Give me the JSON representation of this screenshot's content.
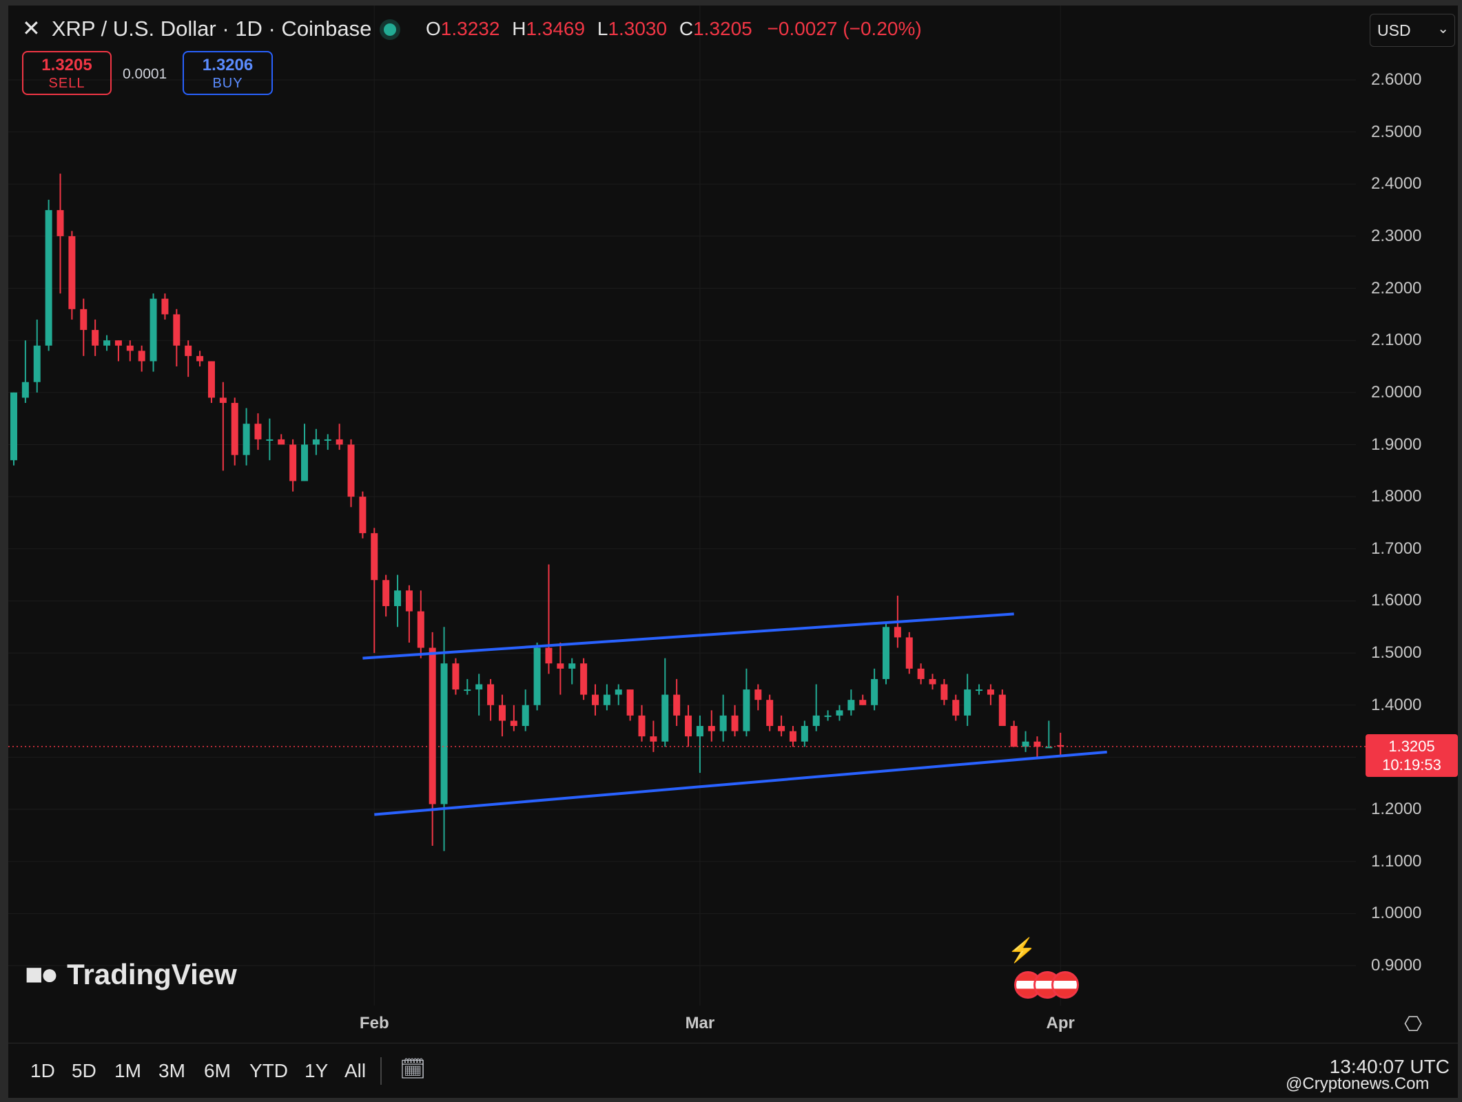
{
  "header": {
    "symbol_title": "XRP / U.S. Dollar · 1D · Coinbase",
    "ohlc": {
      "o_label": "O",
      "o_value": "1.3232",
      "h_label": "H",
      "h_value": "1.3469",
      "l_label": "L",
      "l_value": "1.3030",
      "c_label": "C",
      "c_value": "1.3205",
      "change": "−0.0027 (−0.20%)"
    },
    "sell_price": "1.3205",
    "sell_label": "SELL",
    "spread": "0.0001",
    "buy_price": "1.3206",
    "buy_label": "BUY",
    "currency": "USD"
  },
  "price_tag": {
    "price": "1.3205",
    "countdown": "10:19:53"
  },
  "logo_text": "TradingView",
  "timeframes": [
    "1D",
    "5D",
    "1M",
    "3M",
    "6M",
    "YTD",
    "1Y",
    "All"
  ],
  "clock": "13:40:07 UTC",
  "watermark": "@Cryptonews.Com",
  "colors": {
    "up": "#22ab94",
    "down": "#f23645",
    "trendline": "#2962ff",
    "background": "#0f0f0f",
    "grid": "#1c1c1c"
  },
  "icons": {
    "close": "close-icon",
    "calendar": "calendar-range-icon",
    "settings": "settings-icon",
    "event": "economic-event-icon",
    "flag": "us-flag-icon"
  },
  "chart_data": {
    "type": "candlestick",
    "symbol": "XRP / U.S. Dollar",
    "interval": "1D",
    "exchange": "Coinbase",
    "ylim": [
      0.85,
      2.68
    ],
    "y_ticks": [
      "2.6000",
      "2.5000",
      "2.4000",
      "2.3000",
      "2.2000",
      "2.1000",
      "2.0000",
      "1.9000",
      "1.8000",
      "1.7000",
      "1.6000",
      "1.5000",
      "1.4000",
      "1.3000",
      "1.2000",
      "1.1000",
      "1.0000",
      "0.9000"
    ],
    "x_ticks": [
      {
        "label": "Feb",
        "date": "2025-02-01"
      },
      {
        "label": "Mar",
        "date": "2025-03-01"
      },
      {
        "label": "Apr",
        "date": "2025-04-01"
      }
    ],
    "last_price": 1.3205,
    "candles": [
      {
        "date": "2025-01-01",
        "o": 1.87,
        "h": 2.0,
        "l": 1.86,
        "c": 2.0
      },
      {
        "date": "2025-01-02",
        "o": 1.99,
        "h": 2.1,
        "l": 1.98,
        "c": 2.02
      },
      {
        "date": "2025-01-03",
        "o": 2.02,
        "h": 2.14,
        "l": 2.0,
        "c": 2.09
      },
      {
        "date": "2025-01-04",
        "o": 2.09,
        "h": 2.37,
        "l": 2.08,
        "c": 2.35
      },
      {
        "date": "2025-01-05",
        "o": 2.35,
        "h": 2.42,
        "l": 2.19,
        "c": 2.3
      },
      {
        "date": "2025-01-06",
        "o": 2.3,
        "h": 2.31,
        "l": 2.14,
        "c": 2.16
      },
      {
        "date": "2025-01-07",
        "o": 2.16,
        "h": 2.18,
        "l": 2.07,
        "c": 2.12
      },
      {
        "date": "2025-01-08",
        "o": 2.12,
        "h": 2.14,
        "l": 2.07,
        "c": 2.09
      },
      {
        "date": "2025-01-09",
        "o": 2.09,
        "h": 2.11,
        "l": 2.08,
        "c": 2.1
      },
      {
        "date": "2025-01-10",
        "o": 2.1,
        "h": 2.1,
        "l": 2.06,
        "c": 2.09
      },
      {
        "date": "2025-01-11",
        "o": 2.09,
        "h": 2.1,
        "l": 2.06,
        "c": 2.08
      },
      {
        "date": "2025-01-12",
        "o": 2.08,
        "h": 2.09,
        "l": 2.04,
        "c": 2.06
      },
      {
        "date": "2025-01-13",
        "o": 2.06,
        "h": 2.19,
        "l": 2.04,
        "c": 2.18
      },
      {
        "date": "2025-01-14",
        "o": 2.18,
        "h": 2.19,
        "l": 2.14,
        "c": 2.15
      },
      {
        "date": "2025-01-15",
        "o": 2.15,
        "h": 2.16,
        "l": 2.05,
        "c": 2.09
      },
      {
        "date": "2025-01-16",
        "o": 2.09,
        "h": 2.1,
        "l": 2.03,
        "c": 2.07
      },
      {
        "date": "2025-01-17",
        "o": 2.07,
        "h": 2.08,
        "l": 2.05,
        "c": 2.06
      },
      {
        "date": "2025-01-18",
        "o": 2.06,
        "h": 2.06,
        "l": 1.98,
        "c": 1.99
      },
      {
        "date": "2025-01-19",
        "o": 1.99,
        "h": 2.02,
        "l": 1.85,
        "c": 1.98
      },
      {
        "date": "2025-01-20",
        "o": 1.98,
        "h": 1.99,
        "l": 1.86,
        "c": 1.88
      },
      {
        "date": "2025-01-21",
        "o": 1.88,
        "h": 1.97,
        "l": 1.86,
        "c": 1.94
      },
      {
        "date": "2025-01-22",
        "o": 1.94,
        "h": 1.96,
        "l": 1.89,
        "c": 1.91
      },
      {
        "date": "2025-01-23",
        "o": 1.91,
        "h": 1.95,
        "l": 1.87,
        "c": 1.91
      },
      {
        "date": "2025-01-24",
        "o": 1.91,
        "h": 1.92,
        "l": 1.9,
        "c": 1.9
      },
      {
        "date": "2025-01-25",
        "o": 1.9,
        "h": 1.91,
        "l": 1.81,
        "c": 1.83
      },
      {
        "date": "2025-01-26",
        "o": 1.83,
        "h": 1.94,
        "l": 1.83,
        "c": 1.9
      },
      {
        "date": "2025-01-27",
        "o": 1.9,
        "h": 1.93,
        "l": 1.88,
        "c": 1.91
      },
      {
        "date": "2025-01-28",
        "o": 1.91,
        "h": 1.92,
        "l": 1.89,
        "c": 1.91
      },
      {
        "date": "2025-01-29",
        "o": 1.91,
        "h": 1.94,
        "l": 1.89,
        "c": 1.9
      },
      {
        "date": "2025-01-30",
        "o": 1.9,
        "h": 1.91,
        "l": 1.78,
        "c": 1.8
      },
      {
        "date": "2025-01-31",
        "o": 1.8,
        "h": 1.81,
        "l": 1.72,
        "c": 1.73
      },
      {
        "date": "2025-02-01",
        "o": 1.73,
        "h": 1.74,
        "l": 1.5,
        "c": 1.64
      },
      {
        "date": "2025-02-02",
        "o": 1.64,
        "h": 1.65,
        "l": 1.57,
        "c": 1.59
      },
      {
        "date": "2025-02-03",
        "o": 1.59,
        "h": 1.65,
        "l": 1.55,
        "c": 1.62
      },
      {
        "date": "2025-02-04",
        "o": 1.62,
        "h": 1.63,
        "l": 1.52,
        "c": 1.58
      },
      {
        "date": "2025-02-05",
        "o": 1.58,
        "h": 1.62,
        "l": 1.49,
        "c": 1.51
      },
      {
        "date": "2025-02-06",
        "o": 1.51,
        "h": 1.54,
        "l": 1.13,
        "c": 1.21
      },
      {
        "date": "2025-02-07",
        "o": 1.21,
        "h": 1.55,
        "l": 1.12,
        "c": 1.48
      },
      {
        "date": "2025-02-08",
        "o": 1.48,
        "h": 1.49,
        "l": 1.42,
        "c": 1.43
      },
      {
        "date": "2025-02-09",
        "o": 1.43,
        "h": 1.45,
        "l": 1.42,
        "c": 1.43
      },
      {
        "date": "2025-02-10",
        "o": 1.43,
        "h": 1.46,
        "l": 1.38,
        "c": 1.44
      },
      {
        "date": "2025-02-11",
        "o": 1.44,
        "h": 1.45,
        "l": 1.37,
        "c": 1.4
      },
      {
        "date": "2025-02-12",
        "o": 1.4,
        "h": 1.42,
        "l": 1.34,
        "c": 1.37
      },
      {
        "date": "2025-02-13",
        "o": 1.37,
        "h": 1.4,
        "l": 1.35,
        "c": 1.36
      },
      {
        "date": "2025-02-14",
        "o": 1.36,
        "h": 1.43,
        "l": 1.35,
        "c": 1.4
      },
      {
        "date": "2025-02-15",
        "o": 1.4,
        "h": 1.52,
        "l": 1.39,
        "c": 1.51
      },
      {
        "date": "2025-02-16",
        "o": 1.51,
        "h": 1.67,
        "l": 1.46,
        "c": 1.48
      },
      {
        "date": "2025-02-17",
        "o": 1.48,
        "h": 1.52,
        "l": 1.42,
        "c": 1.47
      },
      {
        "date": "2025-02-18",
        "o": 1.47,
        "h": 1.49,
        "l": 1.44,
        "c": 1.48
      },
      {
        "date": "2025-02-19",
        "o": 1.48,
        "h": 1.49,
        "l": 1.41,
        "c": 1.42
      },
      {
        "date": "2025-02-20",
        "o": 1.42,
        "h": 1.44,
        "l": 1.38,
        "c": 1.4
      },
      {
        "date": "2025-02-21",
        "o": 1.4,
        "h": 1.44,
        "l": 1.39,
        "c": 1.42
      },
      {
        "date": "2025-02-22",
        "o": 1.42,
        "h": 1.44,
        "l": 1.4,
        "c": 1.43
      },
      {
        "date": "2025-02-23",
        "o": 1.43,
        "h": 1.43,
        "l": 1.37,
        "c": 1.38
      },
      {
        "date": "2025-02-24",
        "o": 1.38,
        "h": 1.4,
        "l": 1.33,
        "c": 1.34
      },
      {
        "date": "2025-02-25",
        "o": 1.34,
        "h": 1.37,
        "l": 1.31,
        "c": 1.33
      },
      {
        "date": "2025-02-26",
        "o": 1.33,
        "h": 1.49,
        "l": 1.32,
        "c": 1.42
      },
      {
        "date": "2025-02-27",
        "o": 1.42,
        "h": 1.45,
        "l": 1.36,
        "c": 1.38
      },
      {
        "date": "2025-02-28",
        "o": 1.38,
        "h": 1.4,
        "l": 1.32,
        "c": 1.34
      },
      {
        "date": "2025-03-01",
        "o": 1.34,
        "h": 1.38,
        "l": 1.27,
        "c": 1.36
      },
      {
        "date": "2025-03-02",
        "o": 1.36,
        "h": 1.39,
        "l": 1.33,
        "c": 1.35
      },
      {
        "date": "2025-03-03",
        "o": 1.35,
        "h": 1.42,
        "l": 1.33,
        "c": 1.38
      },
      {
        "date": "2025-03-04",
        "o": 1.38,
        "h": 1.4,
        "l": 1.34,
        "c": 1.35
      },
      {
        "date": "2025-03-05",
        "o": 1.35,
        "h": 1.47,
        "l": 1.34,
        "c": 1.43
      },
      {
        "date": "2025-03-06",
        "o": 1.43,
        "h": 1.44,
        "l": 1.39,
        "c": 1.41
      },
      {
        "date": "2025-03-07",
        "o": 1.41,
        "h": 1.42,
        "l": 1.35,
        "c": 1.36
      },
      {
        "date": "2025-03-08",
        "o": 1.36,
        "h": 1.38,
        "l": 1.34,
        "c": 1.35
      },
      {
        "date": "2025-03-09",
        "o": 1.35,
        "h": 1.36,
        "l": 1.32,
        "c": 1.33
      },
      {
        "date": "2025-03-10",
        "o": 1.33,
        "h": 1.37,
        "l": 1.32,
        "c": 1.36
      },
      {
        "date": "2025-03-11",
        "o": 1.36,
        "h": 1.44,
        "l": 1.35,
        "c": 1.38
      },
      {
        "date": "2025-03-12",
        "o": 1.38,
        "h": 1.39,
        "l": 1.37,
        "c": 1.38
      },
      {
        "date": "2025-03-13",
        "o": 1.38,
        "h": 1.4,
        "l": 1.37,
        "c": 1.39
      },
      {
        "date": "2025-03-14",
        "o": 1.39,
        "h": 1.43,
        "l": 1.38,
        "c": 1.41
      },
      {
        "date": "2025-03-15",
        "o": 1.41,
        "h": 1.42,
        "l": 1.4,
        "c": 1.4
      },
      {
        "date": "2025-03-16",
        "o": 1.4,
        "h": 1.47,
        "l": 1.39,
        "c": 1.45
      },
      {
        "date": "2025-03-17",
        "o": 1.45,
        "h": 1.56,
        "l": 1.44,
        "c": 1.55
      },
      {
        "date": "2025-03-18",
        "o": 1.55,
        "h": 1.61,
        "l": 1.51,
        "c": 1.53
      },
      {
        "date": "2025-03-19",
        "o": 1.53,
        "h": 1.54,
        "l": 1.46,
        "c": 1.47
      },
      {
        "date": "2025-03-20",
        "o": 1.47,
        "h": 1.48,
        "l": 1.44,
        "c": 1.45
      },
      {
        "date": "2025-03-21",
        "o": 1.45,
        "h": 1.46,
        "l": 1.43,
        "c": 1.44
      },
      {
        "date": "2025-03-22",
        "o": 1.44,
        "h": 1.45,
        "l": 1.4,
        "c": 1.41
      },
      {
        "date": "2025-03-23",
        "o": 1.41,
        "h": 1.42,
        "l": 1.37,
        "c": 1.38
      },
      {
        "date": "2025-03-24",
        "o": 1.38,
        "h": 1.46,
        "l": 1.36,
        "c": 1.43
      },
      {
        "date": "2025-03-25",
        "o": 1.43,
        "h": 1.44,
        "l": 1.42,
        "c": 1.43
      },
      {
        "date": "2025-03-26",
        "o": 1.43,
        "h": 1.44,
        "l": 1.4,
        "c": 1.42
      },
      {
        "date": "2025-03-27",
        "o": 1.42,
        "h": 1.43,
        "l": 1.36,
        "c": 1.36
      },
      {
        "date": "2025-03-28",
        "o": 1.36,
        "h": 1.37,
        "l": 1.32,
        "c": 1.32
      },
      {
        "date": "2025-03-29",
        "o": 1.32,
        "h": 1.35,
        "l": 1.31,
        "c": 1.33
      },
      {
        "date": "2025-03-30",
        "o": 1.33,
        "h": 1.34,
        "l": 1.3,
        "c": 1.32
      },
      {
        "date": "2025-03-31",
        "o": 1.32,
        "h": 1.37,
        "l": 1.32,
        "c": 1.32
      },
      {
        "date": "2025-04-01",
        "o": 1.3232,
        "h": 1.3469,
        "l": 1.303,
        "c": 1.3205
      }
    ],
    "trendlines": [
      {
        "name": "upper",
        "start": {
          "date": "2025-01-31",
          "price": 1.49
        },
        "end": {
          "date": "2025-03-28",
          "price": 1.575
        }
      },
      {
        "name": "lower",
        "start": {
          "date": "2025-02-01",
          "price": 1.19
        },
        "end": {
          "date": "2025-04-05",
          "price": 1.31
        }
      }
    ]
  }
}
